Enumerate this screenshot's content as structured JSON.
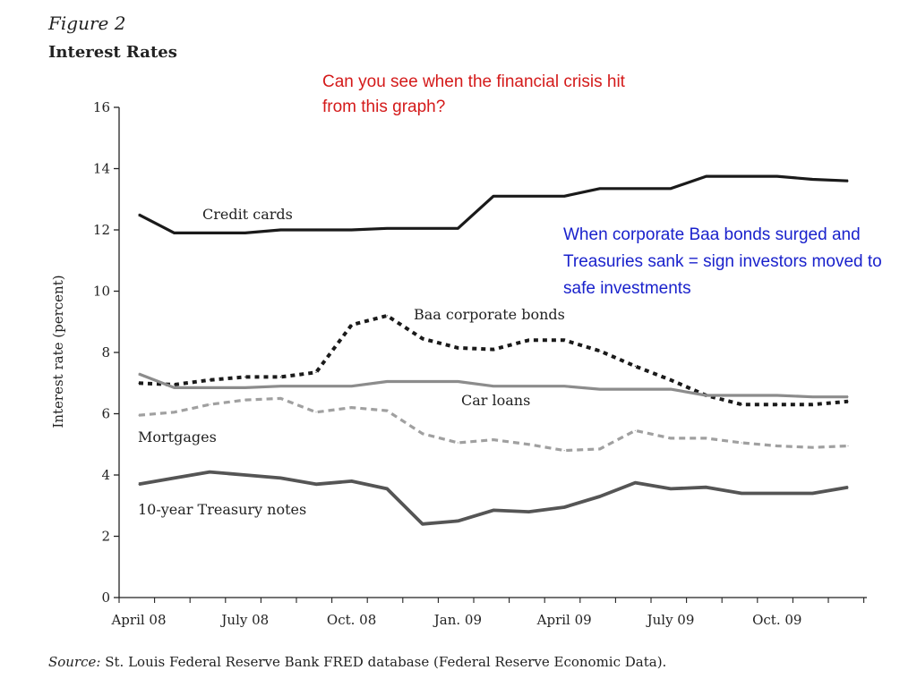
{
  "figure": {
    "number": "Figure 2",
    "title": "Interest Rates",
    "source_prefix": "Source:",
    "source_text": " St. Louis Federal Reserve Bank FRED database (Federal Reserve Economic Data)."
  },
  "annotations": {
    "red_note": "Can you see when the financial crisis hit from this graph?",
    "blue_note": "When corporate Baa bonds surged and Treasuries sank = sign investors moved to safe investments"
  },
  "colors": {
    "credit_cards": "#1a1a1a",
    "baa": "#1a1a1a",
    "car_loans": "#8c8c8c",
    "mortgages": "#a0a0a0",
    "treasury": "#555555",
    "red_note": "#d41a1a",
    "blue_note": "#1a22cc"
  },
  "chart_data": {
    "type": "line",
    "title": "Interest Rates",
    "xlabel": "",
    "ylabel": "Interest rate (percent)",
    "ylim": [
      0,
      16
    ],
    "yticks": [
      0,
      2,
      4,
      6,
      8,
      10,
      12,
      14,
      16
    ],
    "xtick_labels": [
      "April 08",
      "July 08",
      "Oct. 08",
      "Jan. 09",
      "April 09",
      "July 09",
      "Oct. 09"
    ],
    "x": [
      "Apr 08",
      "May 08",
      "Jun 08",
      "Jul 08",
      "Aug 08",
      "Sep 08",
      "Oct 08",
      "Nov 08",
      "Dec 08",
      "Jan 09",
      "Feb 09",
      "Mar 09",
      "Apr 09",
      "May 09",
      "Jun 09",
      "Jul 09",
      "Aug 09",
      "Sep 09",
      "Oct 09",
      "Nov 09",
      "Dec 09"
    ],
    "grid": false,
    "series": [
      {
        "name": "Credit cards",
        "style": "solid",
        "color_key": "credit_cards",
        "width": 3.2,
        "values": [
          12.5,
          11.9,
          11.9,
          11.9,
          12.0,
          12.0,
          12.0,
          12.05,
          12.05,
          12.05,
          13.1,
          13.1,
          13.1,
          13.35,
          13.35,
          13.35,
          13.75,
          13.75,
          13.75,
          13.65,
          13.6
        ]
      },
      {
        "name": "Baa corporate bonds",
        "style": "dotted",
        "color_key": "baa",
        "width": 4,
        "values": [
          7.0,
          6.95,
          7.1,
          7.2,
          7.2,
          7.35,
          8.9,
          9.2,
          8.45,
          8.15,
          8.1,
          8.4,
          8.4,
          8.05,
          7.55,
          7.1,
          6.6,
          6.3,
          6.3,
          6.3,
          6.4
        ]
      },
      {
        "name": "Car loans",
        "style": "solid",
        "color_key": "car_loans",
        "width": 3.2,
        "values": [
          7.3,
          6.85,
          6.85,
          6.85,
          6.9,
          6.9,
          6.9,
          7.05,
          7.05,
          7.05,
          6.9,
          6.9,
          6.9,
          6.8,
          6.8,
          6.8,
          6.6,
          6.6,
          6.6,
          6.55,
          6.55
        ]
      },
      {
        "name": "Mortgages",
        "style": "dashed",
        "color_key": "mortgages",
        "width": 3.2,
        "values": [
          5.95,
          6.05,
          6.3,
          6.45,
          6.5,
          6.05,
          6.2,
          6.1,
          5.35,
          5.05,
          5.15,
          5.0,
          4.8,
          4.85,
          5.45,
          5.2,
          5.2,
          5.05,
          4.95,
          4.9,
          4.95
        ]
      },
      {
        "name": "10-year Treasury notes",
        "style": "solid",
        "color_key": "treasury",
        "width": 3.8,
        "values": [
          3.7,
          3.9,
          4.1,
          4.0,
          3.9,
          3.7,
          3.8,
          3.55,
          2.4,
          2.5,
          2.85,
          2.8,
          2.95,
          3.3,
          3.75,
          3.55,
          3.6,
          3.4,
          3.4,
          3.4,
          3.6
        ]
      }
    ]
  }
}
